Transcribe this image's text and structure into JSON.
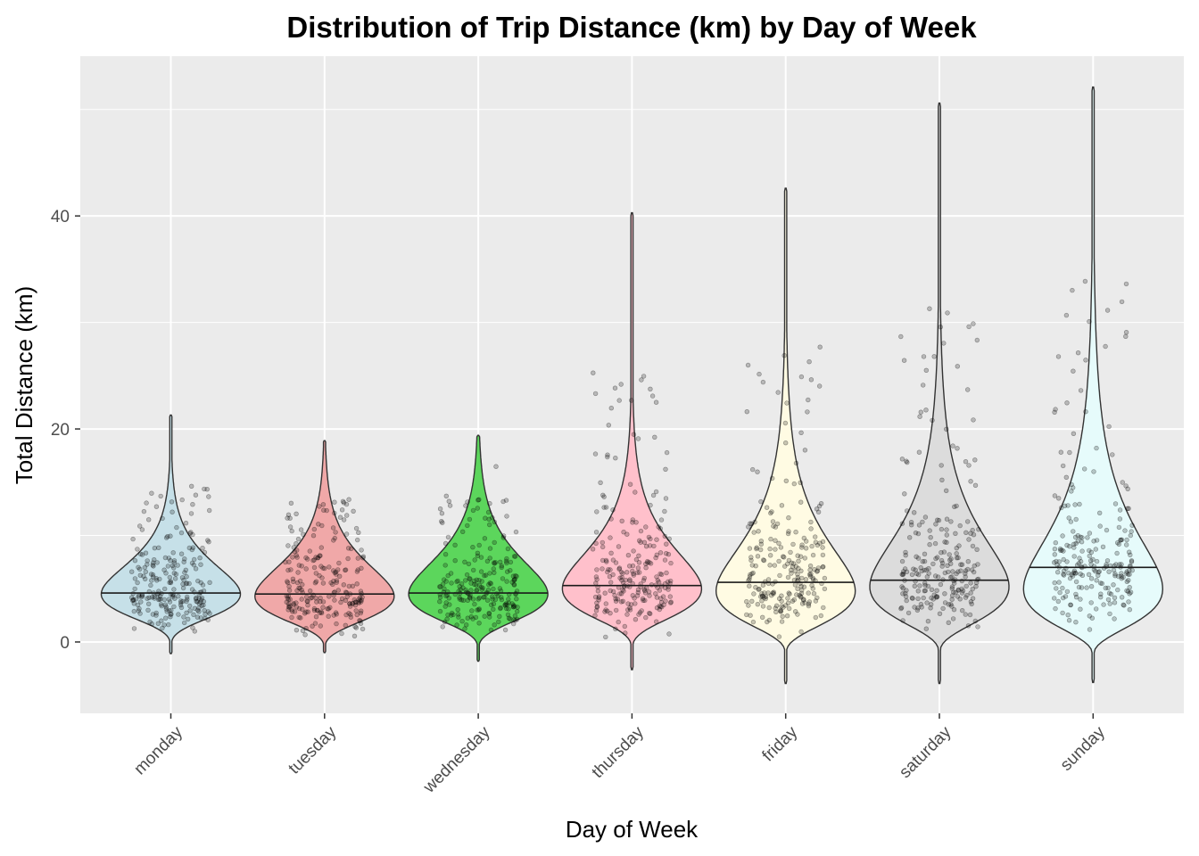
{
  "chart_data": {
    "type": "violin",
    "title": "Distribution of Trip Distance (km) by Day of Week",
    "xlabel": "Day of Week",
    "ylabel": "Total Distance (km)",
    "ylim": [
      -6.7,
      55.0
    ],
    "yticks": [
      0,
      20,
      40
    ],
    "grid": true,
    "legend": "none",
    "categories": [
      "monday",
      "tuesday",
      "wednesday",
      "thursday",
      "friday",
      "saturday",
      "sunday"
    ],
    "series": [
      {
        "category": "monday",
        "fill": "#c6e0e8",
        "min": -1.1,
        "max": 21.3,
        "median": 4.6,
        "q1": 3.1,
        "q3": 6.5,
        "y_max_density": 4.5,
        "half_width_km_equiv": 6.3
      },
      {
        "category": "tuesday",
        "fill": "#f0a8a8",
        "min": -1.0,
        "max": 18.9,
        "median": 4.5,
        "q1": 3.0,
        "q3": 6.7,
        "y_max_density": 4.3
      },
      {
        "category": "wednesday",
        "fill": "#5cd65c",
        "min": -1.8,
        "max": 19.4,
        "median": 4.6,
        "q1": 3.0,
        "q3": 6.9,
        "y_max_density": 4.5
      },
      {
        "category": "thursday",
        "fill": "#ffc0cb",
        "min": -2.6,
        "max": 40.3,
        "median": 5.3,
        "q1": 3.5,
        "q3": 8.0,
        "y_max_density": 5.0
      },
      {
        "category": "friday",
        "fill": "#fffbe3",
        "min": -3.9,
        "max": 42.6,
        "median": 5.6,
        "q1": 3.6,
        "q3": 9.5,
        "y_max_density": 4.8
      },
      {
        "category": "saturday",
        "fill": "#dcdcdc",
        "min": -3.9,
        "max": 50.6,
        "median": 5.8,
        "q1": 3.7,
        "q3": 9.8,
        "y_max_density": 5.2
      },
      {
        "category": "sunday",
        "fill": "#e6fbfb",
        "min": -3.8,
        "max": 52.1,
        "median": 7.0,
        "q1": 4.2,
        "q3": 11.8,
        "y_max_density": 5.0
      }
    ],
    "points_note_free": true,
    "point_color": "#000000",
    "point_alpha": 0.25
  }
}
